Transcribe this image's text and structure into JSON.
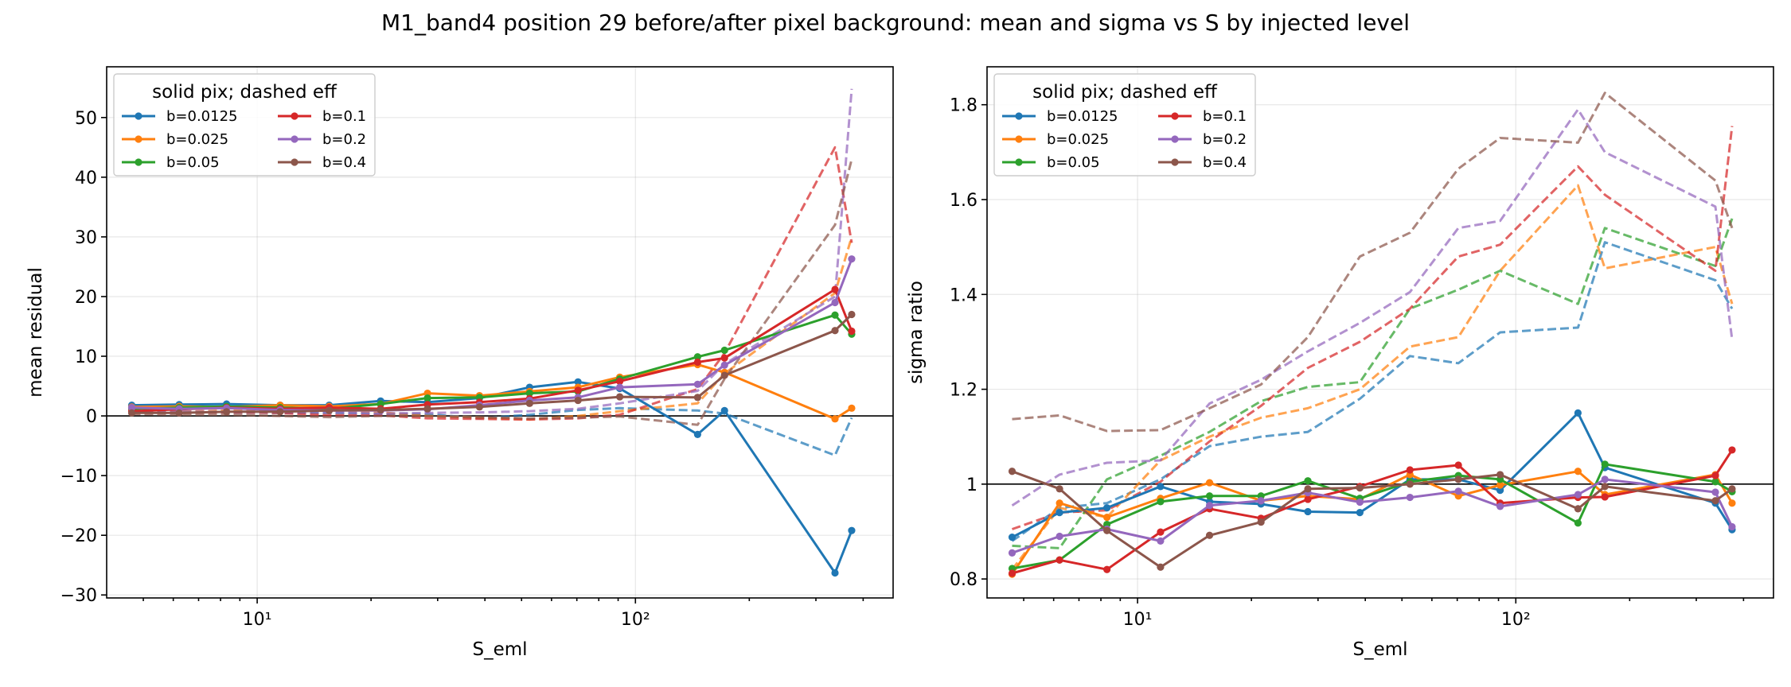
{
  "figure": {
    "title": "M1_band4 position 29 before/after pixel background: mean and sigma vs S by injected level"
  },
  "chart_data": [
    {
      "type": "line",
      "panel": "left",
      "xlabel": "S_eml",
      "ylabel": "mean residual",
      "xscale": "log",
      "xlim": [
        4.0,
        480
      ],
      "ylim": [
        -30.5,
        58.5
      ],
      "yticks": [
        -30,
        -20,
        -10,
        0,
        10,
        20,
        30,
        40,
        50
      ],
      "xtick_labels": [
        "10¹",
        "10²"
      ],
      "reference_line": 0,
      "grid": true,
      "legend": {
        "title": "solid pix; dashed eff",
        "placement": "upper-left",
        "columns": 2
      },
      "x": [
        4.66,
        6.22,
        8.3,
        11.5,
        15.5,
        21.2,
        28.2,
        38.7,
        52.5,
        70.5,
        90.9,
        146,
        172,
        337,
        373
      ],
      "series": [
        {
          "name": "b=0.0125",
          "color": "#1f77b4",
          "pix": [
            1.8,
            1.9,
            2.0,
            1.8,
            1.8,
            2.5,
            2.3,
            3.0,
            4.8,
            5.7,
            4.6,
            -3.1,
            0.9,
            -26.3,
            -19.2
          ],
          "eff": [
            0.9,
            0.7,
            0.6,
            0.5,
            0.5,
            0.4,
            0.3,
            -0.4,
            0.2,
            1.0,
            1.3,
            0.9,
            0.4,
            -6.6,
            -0.3
          ]
        },
        {
          "name": "b=0.025",
          "color": "#ff7f0e",
          "pix": [
            1.5,
            1.6,
            1.5,
            1.8,
            1.6,
            2.0,
            3.8,
            3.4,
            4.1,
            4.8,
            6.5,
            8.6,
            7.3,
            -0.5,
            1.3
          ],
          "eff": [
            0.8,
            0.7,
            0.9,
            1.0,
            1.0,
            0.6,
            0.0,
            -0.3,
            -0.6,
            0.0,
            0.8,
            2.1,
            7.1,
            20.6,
            30.0
          ]
        },
        {
          "name": "b=0.05",
          "color": "#2ca02c",
          "pix": [
            1.2,
            1.4,
            1.6,
            1.4,
            1.2,
            2.0,
            3.0,
            3.1,
            3.8,
            4.1,
            6.2,
            9.9,
            11.0,
            16.9,
            13.7
          ]
        },
        {
          "name": "b=0.1",
          "color": "#d62728",
          "pix": [
            0.8,
            1.1,
            1.4,
            1.2,
            1.4,
            1.2,
            1.9,
            2.3,
            2.9,
            4.3,
            5.8,
            9.0,
            9.7,
            21.2,
            14.2
          ],
          "eff": [
            0.6,
            0.5,
            0.6,
            0.5,
            0.1,
            0.1,
            -0.4,
            -0.5,
            -0.6,
            -0.4,
            0.2,
            4.5,
            10.5,
            45.0,
            29.0
          ]
        },
        {
          "name": "b=0.2",
          "color": "#9467bd",
          "pix": [
            1.4,
            1.2,
            1.3,
            1.0,
            0.9,
            0.9,
            1.1,
            1.8,
            2.6,
            3.1,
            4.8,
            5.3,
            8.5,
            19.0,
            26.3
          ],
          "eff": [
            0.7,
            0.7,
            0.7,
            0.7,
            0.6,
            0.4,
            0.5,
            0.6,
            0.8,
            1.2,
            2.1,
            4.2,
            8.7,
            20.0,
            54.8
          ]
        },
        {
          "name": "b=0.4",
          "color": "#8c564b",
          "pix": [
            0.5,
            0.5,
            0.7,
            0.7,
            0.9,
            1.0,
            1.2,
            1.5,
            2.1,
            2.6,
            3.2,
            3.1,
            6.8,
            14.3,
            17.0
          ],
          "eff": [
            0.3,
            0.2,
            0.2,
            0.0,
            -0.2,
            0.0,
            0.0,
            -0.2,
            -0.4,
            -0.3,
            -0.1,
            -1.5,
            6.2,
            32.0,
            43.0
          ]
        }
      ]
    },
    {
      "type": "line",
      "panel": "right",
      "xlabel": "S_eml",
      "ylabel": "sigma ratio",
      "xscale": "log",
      "xlim": [
        4.0,
        480
      ],
      "ylim": [
        0.76,
        1.88
      ],
      "yticks": [
        0.8,
        1.0,
        1.2,
        1.4,
        1.6,
        1.8
      ],
      "xtick_labels": [
        "10¹",
        "10²"
      ],
      "reference_line": 1.0,
      "grid": true,
      "legend": {
        "title": "solid pix; dashed eff",
        "placement": "upper-left",
        "columns": 2
      },
      "x": [
        4.66,
        6.22,
        8.3,
        11.5,
        15.5,
        21.2,
        28.2,
        38.7,
        52.5,
        70.5,
        90.9,
        146,
        172,
        337,
        373
      ],
      "series": [
        {
          "name": "b=0.0125",
          "color": "#1f77b4",
          "pix": [
            0.888,
            0.94,
            0.95,
            0.995,
            0.963,
            0.958,
            0.942,
            0.94,
            1.01,
            1.01,
            0.987,
            1.15,
            1.035,
            0.96,
            0.904
          ],
          "eff": [
            0.88,
            0.95,
            0.96,
            1.01,
            1.08,
            1.1,
            1.11,
            1.18,
            1.27,
            1.255,
            1.32,
            1.33,
            1.51,
            1.43,
            1.37
          ]
        },
        {
          "name": "b=0.025",
          "color": "#ff7f0e",
          "pix": [
            0.81,
            0.96,
            0.93,
            0.97,
            1.003,
            0.965,
            0.975,
            0.968,
            1.02,
            0.975,
            0.998,
            1.027,
            0.978,
            1.02,
            0.96
          ],
          "eff": [
            0.82,
            0.95,
            0.93,
            1.05,
            1.1,
            1.14,
            1.16,
            1.2,
            1.29,
            1.31,
            1.45,
            1.63,
            1.455,
            1.5,
            1.38
          ]
        },
        {
          "name": "b=0.05",
          "color": "#2ca02c",
          "pix": [
            0.822,
            0.84,
            0.915,
            0.963,
            0.975,
            0.975,
            1.007,
            0.97,
            1.005,
            1.018,
            1.01,
            0.918,
            1.042,
            1.005,
            0.984
          ],
          "eff": [
            0.87,
            0.865,
            1.01,
            1.06,
            1.11,
            1.175,
            1.205,
            1.215,
            1.37,
            1.41,
            1.45,
            1.38,
            1.54,
            1.46,
            1.56
          ]
        },
        {
          "name": "b=0.1",
          "color": "#d62728",
          "pix": [
            0.812,
            0.84,
            0.82,
            0.899,
            0.948,
            0.928,
            0.968,
            0.995,
            1.03,
            1.04,
            0.96,
            0.972,
            0.973,
            1.018,
            1.072
          ],
          "eff": [
            0.905,
            0.94,
            0.945,
            1.005,
            1.09,
            1.165,
            1.245,
            1.3,
            1.37,
            1.48,
            1.505,
            1.67,
            1.61,
            1.45,
            1.755
          ]
        },
        {
          "name": "b=0.2",
          "color": "#9467bd",
          "pix": [
            0.855,
            0.89,
            0.905,
            0.88,
            0.955,
            0.965,
            0.982,
            0.962,
            0.972,
            0.985,
            0.953,
            0.978,
            1.01,
            0.983,
            0.91
          ],
          "eff": [
            0.955,
            1.02,
            1.045,
            1.05,
            1.17,
            1.22,
            1.28,
            1.34,
            1.405,
            1.54,
            1.555,
            1.79,
            1.7,
            1.585,
            1.305
          ]
        },
        {
          "name": "b=0.4",
          "color": "#8c564b",
          "pix": [
            1.027,
            0.99,
            0.902,
            0.825,
            0.892,
            0.92,
            0.99,
            0.992,
            1.0,
            1.01,
            1.02,
            0.948,
            0.995,
            0.965,
            0.99
          ],
          "eff": [
            1.137,
            1.145,
            1.112,
            1.114,
            1.16,
            1.21,
            1.31,
            1.48,
            1.53,
            1.665,
            1.73,
            1.72,
            1.825,
            1.64,
            1.54
          ]
        }
      ]
    }
  ]
}
